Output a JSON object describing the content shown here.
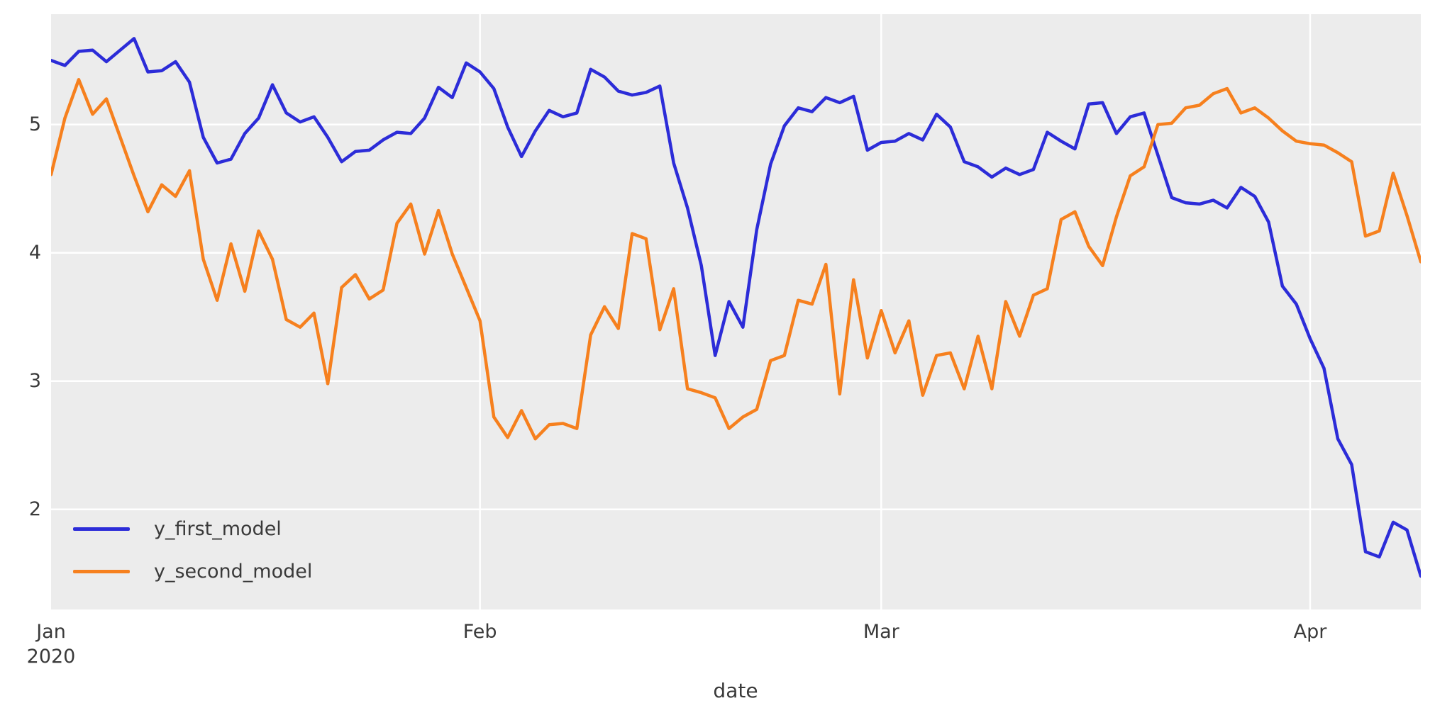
{
  "figure": {
    "background": "#ffffff",
    "plot_background": "#ececec",
    "grid_color": "#ffffff",
    "tick_text_color": "#3a3a3a"
  },
  "chart_data": {
    "type": "line",
    "title": "",
    "xlabel": "date",
    "ylabel": "",
    "grid": true,
    "legend_position": "lower-left",
    "x_start_date": "2020-01-01",
    "x_end_date": "2020-04-09",
    "frequency": "daily",
    "n_points": 100,
    "ylim": [
      1.22,
      5.86
    ],
    "y_gridlines": [
      2,
      3,
      4,
      5
    ],
    "y_ticks": [
      {
        "label": "5",
        "value": 5
      },
      {
        "label": "4",
        "value": 4
      },
      {
        "label": "3",
        "value": 3
      },
      {
        "label": "2",
        "value": 2
      }
    ],
    "x_ticks": [
      {
        "label": "Jan",
        "sublabel": "2020",
        "day": 0,
        "gridline": false
      },
      {
        "label": "Feb",
        "sublabel": "",
        "day": 31,
        "gridline": true
      },
      {
        "label": "Mar",
        "sublabel": "",
        "day": 60,
        "gridline": true
      },
      {
        "label": "Apr",
        "sublabel": "",
        "day": 91,
        "gridline": true
      }
    ],
    "series": [
      {
        "name": "y_first_model",
        "color": "#2c2cd8",
        "values": [
          5.5,
          5.46,
          5.57,
          5.58,
          5.49,
          5.58,
          5.67,
          5.41,
          5.42,
          5.49,
          5.33,
          4.9,
          4.7,
          4.73,
          4.93,
          5.05,
          5.31,
          5.09,
          5.02,
          5.06,
          4.9,
          4.71,
          4.79,
          4.8,
          4.88,
          4.94,
          4.93,
          5.05,
          5.29,
          5.21,
          5.48,
          5.41,
          5.28,
          4.98,
          4.75,
          4.95,
          5.11,
          5.06,
          5.09,
          5.43,
          5.37,
          5.26,
          5.23,
          5.25,
          5.3,
          4.7,
          4.35,
          3.9,
          3.2,
          3.62,
          3.42,
          4.18,
          4.69,
          4.99,
          5.13,
          5.1,
          5.21,
          5.17,
          5.22,
          4.8,
          4.86,
          4.87,
          4.93,
          4.88,
          5.08,
          4.98,
          4.71,
          4.67,
          4.59,
          4.66,
          4.61,
          4.65,
          4.94,
          4.87,
          4.81,
          5.16,
          5.17,
          4.93,
          5.06,
          5.09,
          4.76,
          4.43,
          4.39,
          4.38,
          4.41,
          4.35,
          4.51,
          4.44,
          4.24,
          3.74,
          3.6,
          3.33,
          3.1,
          2.55,
          2.35,
          1.67,
          1.63,
          1.9,
          1.84,
          1.48
        ]
      },
      {
        "name": "y_second_model",
        "color": "#f6801e",
        "values": [
          4.61,
          5.05,
          5.35,
          5.08,
          5.2,
          4.9,
          4.6,
          4.32,
          4.53,
          4.44,
          4.64,
          3.95,
          3.63,
          4.07,
          3.7,
          4.17,
          3.95,
          3.48,
          3.42,
          3.53,
          2.98,
          3.73,
          3.83,
          3.64,
          3.71,
          4.23,
          4.38,
          3.99,
          4.33,
          3.99,
          3.73,
          3.47,
          2.72,
          2.56,
          2.77,
          2.55,
          2.66,
          2.67,
          2.63,
          3.36,
          3.58,
          3.41,
          4.15,
          4.11,
          3.4,
          3.72,
          2.94,
          2.91,
          2.87,
          2.63,
          2.72,
          2.78,
          3.16,
          3.2,
          3.63,
          3.6,
          3.91,
          2.9,
          3.79,
          3.18,
          3.55,
          3.22,
          3.47,
          2.89,
          3.2,
          3.22,
          2.94,
          3.35,
          2.94,
          3.62,
          3.35,
          3.67,
          3.72,
          4.26,
          4.32,
          4.05,
          3.9,
          4.28,
          4.6,
          4.67,
          5.0,
          5.01,
          5.13,
          5.15,
          5.24,
          5.28,
          5.09,
          5.13,
          5.05,
          4.95,
          4.87,
          4.85,
          4.84,
          4.78,
          4.71,
          4.13,
          4.17,
          4.62,
          4.29,
          3.93
        ]
      }
    ]
  }
}
